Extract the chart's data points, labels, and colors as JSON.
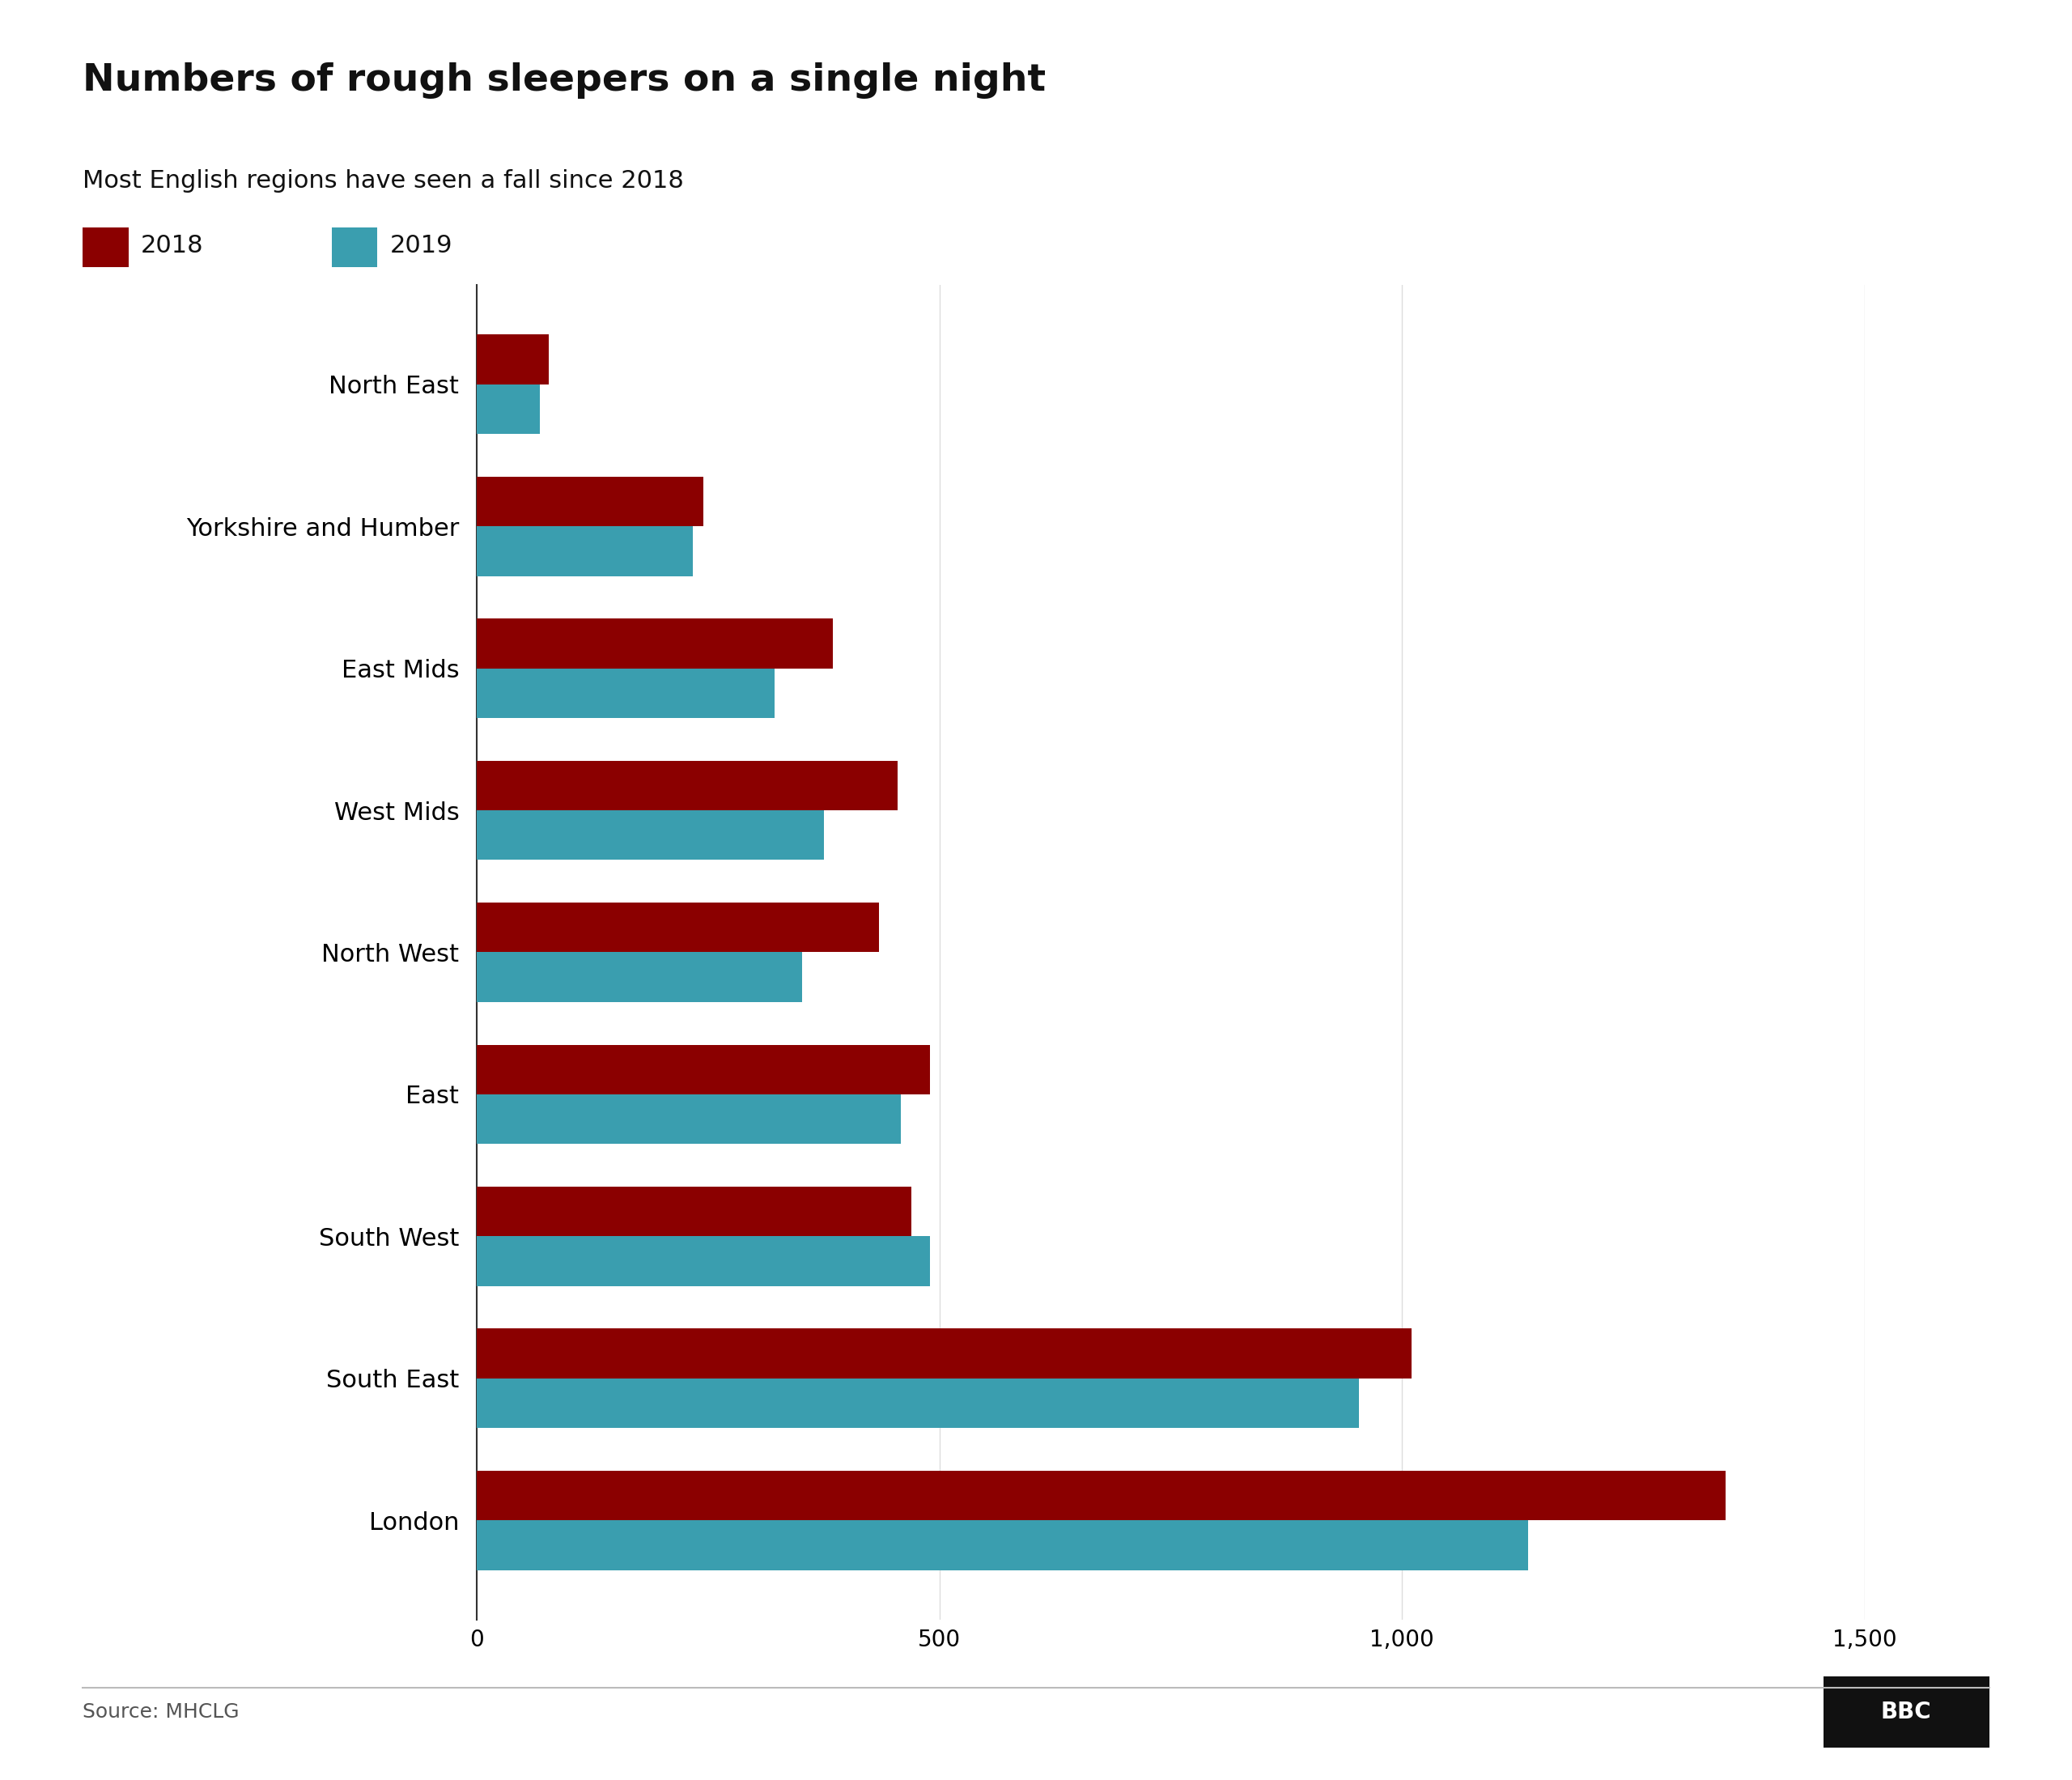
{
  "title": "Numbers of rough sleepers on a single night",
  "subtitle": "Most English regions have seen a fall since 2018",
  "source": "Source: MHCLG",
  "bbc_logo": "BBC",
  "regions": [
    "London",
    "South East",
    "South West",
    "East",
    "North West",
    "West Mids",
    "East Mids",
    "Yorkshire and Humber",
    "North East"
  ],
  "values_2018": [
    1350,
    1010,
    470,
    490,
    435,
    455,
    385,
    245,
    78
  ],
  "values_2019": [
    1136,
    953,
    490,
    458,
    352,
    375,
    322,
    234,
    68
  ],
  "color_2018": "#8B0000",
  "color_2019": "#3A9EAF",
  "xlim": [
    0,
    1500
  ],
  "xticks": [
    0,
    500,
    1000,
    1500
  ],
  "xtick_labels": [
    "0",
    "500",
    "1,000",
    "1,500"
  ],
  "background_color": "#ffffff",
  "bar_height": 0.35,
  "title_fontsize": 34,
  "subtitle_fontsize": 22,
  "label_fontsize": 22,
  "tick_fontsize": 20,
  "legend_fontsize": 22,
  "source_fontsize": 18
}
